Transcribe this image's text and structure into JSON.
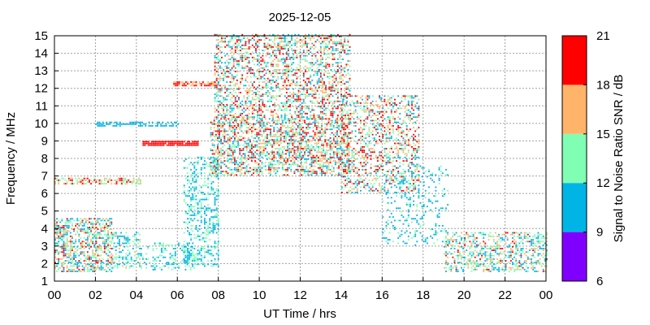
{
  "chart_data": {
    "type": "heatmap",
    "title": "2025-12-05",
    "xlabel": "UT Time / hrs",
    "ylabel": "Frequency / MHz",
    "xlim": [
      0,
      24
    ],
    "ylim": [
      1,
      15
    ],
    "x_ticks": [
      "00",
      "02",
      "04",
      "06",
      "08",
      "10",
      "12",
      "14",
      "16",
      "18",
      "20",
      "22",
      "00"
    ],
    "y_ticks": [
      "1",
      "2",
      "3",
      "4",
      "5",
      "6",
      "7",
      "8",
      "9",
      "10",
      "11",
      "12",
      "13",
      "14",
      "15"
    ],
    "grid": true,
    "colorbar": {
      "label": "Signal to Noise Ratio SNR / dB",
      "range": [
        6,
        21
      ],
      "ticks": [
        "6",
        "9",
        "12",
        "15",
        "18",
        "21"
      ],
      "bands": [
        {
          "from": 6,
          "to": 9,
          "color": "#8000ff"
        },
        {
          "from": 9,
          "to": 12,
          "color": "#00b4e6"
        },
        {
          "from": 12,
          "to": 15,
          "color": "#80ffb4"
        },
        {
          "from": 15,
          "to": 18,
          "color": "#ffb46a"
        },
        {
          "from": 18,
          "to": 21,
          "color": "#ff0000"
        }
      ]
    },
    "regions": [
      {
        "t": [
          0.0,
          2.8
        ],
        "f": [
          1.5,
          4.6
        ],
        "snr": [
          9,
          20
        ],
        "density": 0.55
      },
      {
        "t": [
          2.8,
          4.2
        ],
        "f": [
          1.7,
          3.8
        ],
        "snr": [
          9,
          16
        ],
        "density": 0.35
      },
      {
        "t": [
          4.2,
          6.8
        ],
        "f": [
          1.6,
          3.2
        ],
        "snr": [
          9,
          15
        ],
        "density": 0.3
      },
      {
        "t": [
          0.0,
          4.2
        ],
        "f": [
          6.5,
          6.8
        ],
        "snr": [
          12,
          21
        ],
        "density": 0.6
      },
      {
        "t": [
          2.0,
          6.0
        ],
        "f": [
          9.8,
          10.1
        ],
        "snr": [
          9,
          12
        ],
        "density": 0.5
      },
      {
        "t": [
          4.3,
          7.0
        ],
        "f": [
          8.7,
          8.9
        ],
        "snr": [
          18,
          21
        ],
        "density": 0.9
      },
      {
        "t": [
          5.8,
          8.0
        ],
        "f": [
          12.1,
          12.3
        ],
        "snr": [
          15,
          21
        ],
        "density": 0.7
      },
      {
        "t": [
          6.3,
          8.0
        ],
        "f": [
          1.8,
          8.0
        ],
        "snr": [
          9,
          14
        ],
        "density": 0.35
      },
      {
        "t": [
          7.6,
          14.4
        ],
        "f": [
          7.0,
          10.2
        ],
        "snr": [
          9,
          21
        ],
        "density": 0.5
      },
      {
        "t": [
          7.8,
          14.4
        ],
        "f": [
          10.2,
          15.0
        ],
        "snr": [
          9,
          21
        ],
        "density": 0.4
      },
      {
        "t": [
          14.0,
          17.8
        ],
        "f": [
          6.0,
          11.5
        ],
        "snr": [
          9,
          21
        ],
        "density": 0.35
      },
      {
        "t": [
          16.0,
          19.2
        ],
        "f": [
          3.0,
          7.5
        ],
        "snr": [
          9,
          13
        ],
        "density": 0.15
      },
      {
        "t": [
          19.0,
          24.0
        ],
        "f": [
          1.5,
          3.8
        ],
        "snr": [
          9,
          19
        ],
        "density": 0.4
      }
    ]
  }
}
